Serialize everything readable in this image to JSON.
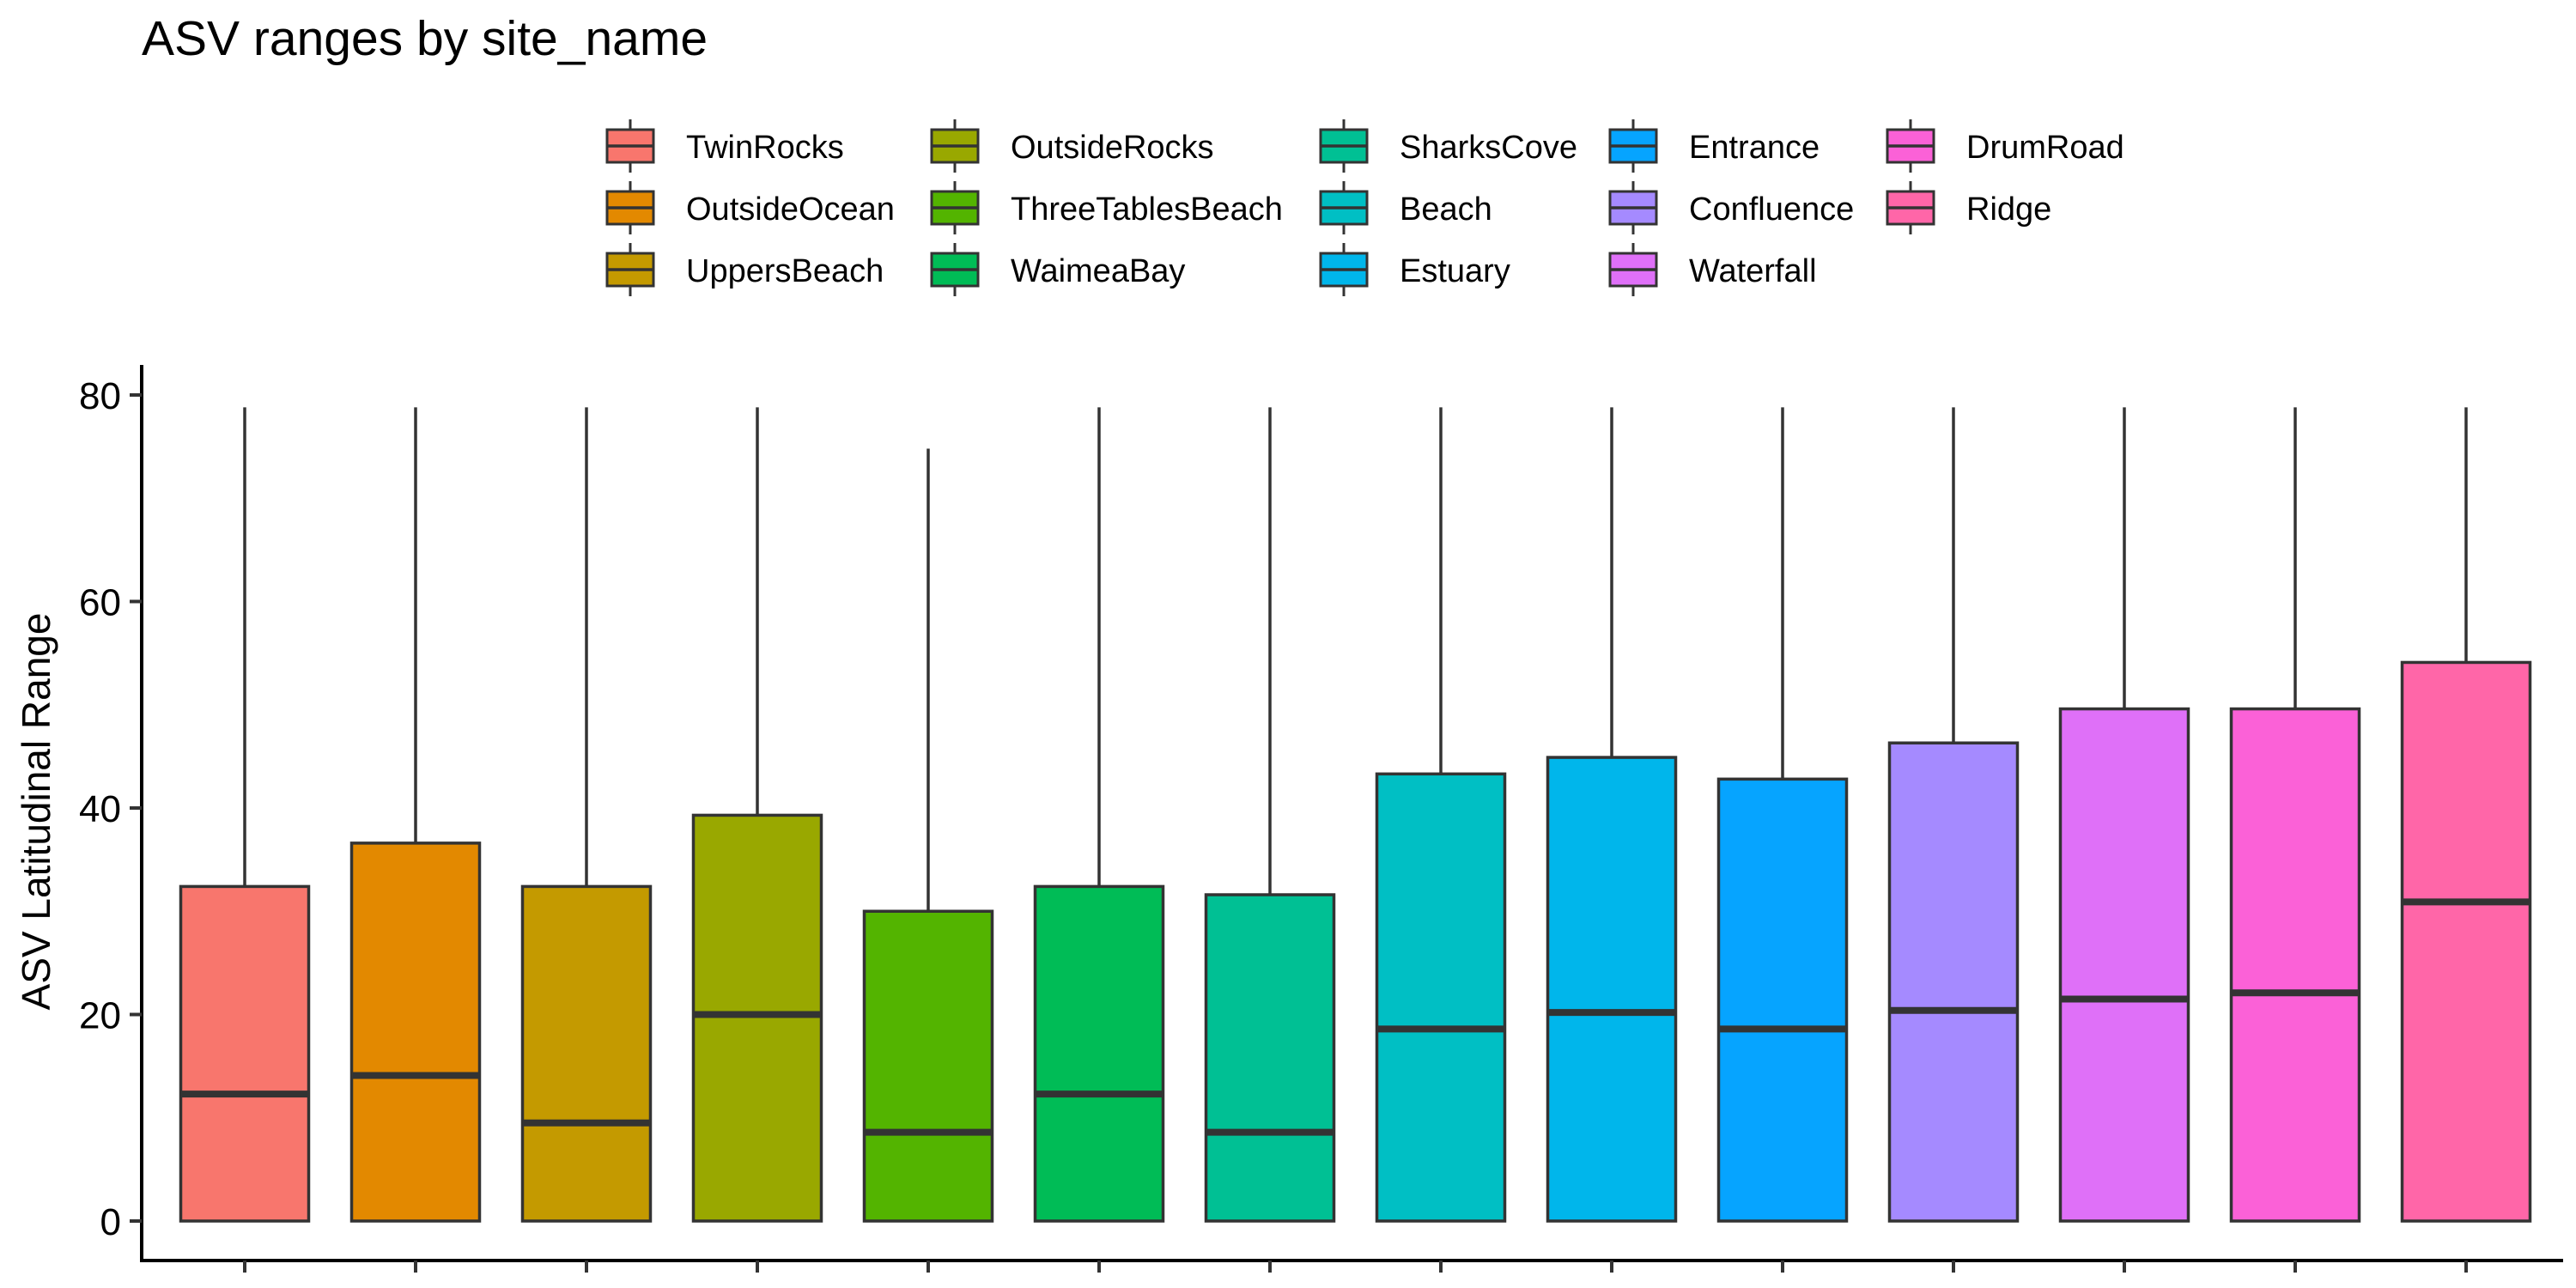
{
  "chart_data": {
    "type": "boxplot",
    "title": "ASV ranges by site_name",
    "xlabel": "",
    "ylabel": "ASV Latitudinal Range",
    "ylim": [
      0,
      80
    ],
    "yticks": [
      0,
      20,
      40,
      60,
      80
    ],
    "grid": false,
    "legend_position": "top",
    "legend_title": "",
    "series": [
      {
        "name": "TwinRocks",
        "color": "#F8766D",
        "min": 0,
        "q1": 0,
        "median": 12.3,
        "q3": 32.4,
        "max": 78.8
      },
      {
        "name": "OutsideOcean",
        "color": "#E38900",
        "min": 0,
        "q1": 0,
        "median": 14.1,
        "q3": 36.6,
        "max": 78.8
      },
      {
        "name": "UppersBeach",
        "color": "#C49A00",
        "min": 0,
        "q1": 0,
        "median": 9.5,
        "q3": 32.4,
        "max": 78.8
      },
      {
        "name": "OutsideRocks",
        "color": "#99A800",
        "min": 0,
        "q1": 0,
        "median": 20.0,
        "q3": 39.3,
        "max": 78.8
      },
      {
        "name": "ThreeTablesBeach",
        "color": "#53B400",
        "min": 0,
        "q1": 0,
        "median": 8.6,
        "q3": 30.0,
        "max": 74.8
      },
      {
        "name": "WaimeaBay",
        "color": "#00BC56",
        "min": 0,
        "q1": 0,
        "median": 12.3,
        "q3": 32.4,
        "max": 78.8
      },
      {
        "name": "SharksCove",
        "color": "#00C094",
        "min": 0,
        "q1": 0,
        "median": 8.6,
        "q3": 31.6,
        "max": 78.8
      },
      {
        "name": "Beach",
        "color": "#00BFC4",
        "min": 0,
        "q1": 0,
        "median": 18.6,
        "q3": 43.3,
        "max": 78.8
      },
      {
        "name": "Estuary",
        "color": "#00B6EB",
        "min": 0,
        "q1": 0,
        "median": 20.2,
        "q3": 44.9,
        "max": 78.8
      },
      {
        "name": "Entrance",
        "color": "#06A4FF",
        "min": 0,
        "q1": 0,
        "median": 18.6,
        "q3": 42.8,
        "max": 78.8
      },
      {
        "name": "Confluence",
        "color": "#A58AFF",
        "min": 0,
        "q1": 0,
        "median": 20.4,
        "q3": 46.3,
        "max": 78.8
      },
      {
        "name": "Waterfall",
        "color": "#DF70F8",
        "min": 0,
        "q1": 0,
        "median": 21.5,
        "q3": 49.6,
        "max": 78.8
      },
      {
        "name": "DrumRoad",
        "color": "#FB61D7",
        "min": 0,
        "q1": 0,
        "median": 22.1,
        "q3": 49.6,
        "max": 78.8
      },
      {
        "name": "Ridge",
        "color": "#FF66A8",
        "min": 0,
        "q1": 0,
        "median": 30.9,
        "q3": 54.1,
        "max": 78.8
      }
    ]
  }
}
